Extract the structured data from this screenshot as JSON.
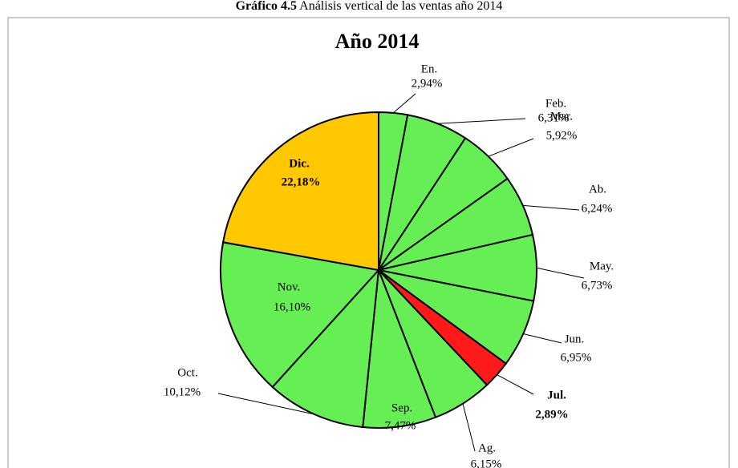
{
  "chart_data": {
    "type": "pie",
    "caption_label": "Gráfico 4.5",
    "caption": "Análisis vertical de las ventas año 2014",
    "title": "Año 2014",
    "categories": [
      "En.",
      "Feb.",
      "Mar.",
      "Ab.",
      "May.",
      "Jun.",
      "Jul.",
      "Ag.",
      "Sep.",
      "Oct.",
      "Nov.",
      "Dic."
    ],
    "values": [
      2.94,
      6.31,
      5.92,
      6.24,
      6.73,
      6.95,
      2.89,
      6.15,
      7.47,
      10.12,
      16.1,
      22.18
    ],
    "value_labels": [
      "2,94%",
      "6,31%",
      "5,92%",
      "6,24%",
      "6,73%",
      "6,95%",
      "2,89%",
      "6,15%",
      "7,47%",
      "10,12%",
      "16,10%",
      "22,18%"
    ],
    "colors": [
      "#66ee55",
      "#66ee55",
      "#66ee55",
      "#66ee55",
      "#66ee55",
      "#66ee55",
      "#ff1a1a",
      "#66ee55",
      "#66ee55",
      "#66ee55",
      "#66ee55",
      "#ffc800"
    ]
  }
}
